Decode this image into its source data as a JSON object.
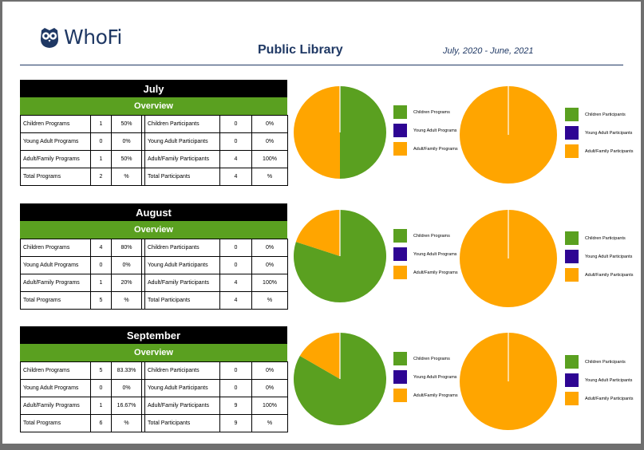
{
  "logo": {
    "brand": "WhoFi",
    "icon": "owl-icon"
  },
  "header": {
    "title": "Public Library",
    "date_range": "July, 2020 - June, 2021"
  },
  "colors": {
    "children": "#5aa020",
    "young_adult": "#2e0593",
    "adult_family": "#ffa500",
    "navy": "#1f3864"
  },
  "legend": {
    "programs": [
      "Children Programs",
      "Young Adult Programs",
      "Adult/Family Programs"
    ],
    "participants": [
      "Children Participants",
      "Young Adult Participants",
      "Adult/Family Participants"
    ]
  },
  "months": [
    {
      "name": "July",
      "overview_label": "Overview",
      "rows": [
        [
          "Children Programs",
          "1",
          "50%",
          "Children Participants",
          "0",
          "0%"
        ],
        [
          "Young Adult Programs",
          "0",
          "0%",
          "Young Adult Participants",
          "0",
          "0%"
        ],
        [
          "Adult/Family Programs",
          "1",
          "50%",
          "Adult/Family Participants",
          "4",
          "100%"
        ],
        [
          "Total Programs",
          "2",
          "%",
          "Total Participants",
          "4",
          "%"
        ]
      ]
    },
    {
      "name": "August",
      "overview_label": "Overview",
      "rows": [
        [
          "Children Programs",
          "4",
          "80%",
          "Children Participants",
          "0",
          "0%"
        ],
        [
          "Young Adult Programs",
          "0",
          "0%",
          "Young Adult Participants",
          "0",
          "0%"
        ],
        [
          "Adult/Family Programs",
          "1",
          "20%",
          "Adult/Family Participants",
          "4",
          "100%"
        ],
        [
          "Total Programs",
          "5",
          "%",
          "Total Participants",
          "4",
          "%"
        ]
      ]
    },
    {
      "name": "September",
      "overview_label": "Overview",
      "rows": [
        [
          "Children Programs",
          "5",
          "83.33%",
          "Children Participants",
          "0",
          "0%"
        ],
        [
          "Young Adult Programs",
          "0",
          "0%",
          "Young Adult Participants",
          "0",
          "0%"
        ],
        [
          "Adult/Family Programs",
          "1",
          "16.67%",
          "Adult/Family Participants",
          "9",
          "100%"
        ],
        [
          "Total Programs",
          "6",
          "%",
          "Total Participants",
          "9",
          "%"
        ]
      ]
    }
  ],
  "chart_data": [
    {
      "type": "pie",
      "categories": [
        "Children Programs",
        "Young Adult Programs",
        "Adult/Family Programs"
      ],
      "values": [
        1,
        0,
        1
      ]
    },
    {
      "type": "pie",
      "categories": [
        "Children Participants",
        "Young Adult Participants",
        "Adult/Family Participants"
      ],
      "values": [
        0,
        0,
        4
      ]
    },
    {
      "type": "pie",
      "categories": [
        "Children Programs",
        "Young Adult Programs",
        "Adult/Family Programs"
      ],
      "values": [
        4,
        0,
        1
      ]
    },
    {
      "type": "pie",
      "categories": [
        "Children Participants",
        "Young Adult Participants",
        "Adult/Family Participants"
      ],
      "values": [
        0,
        0,
        4
      ]
    },
    {
      "type": "pie",
      "categories": [
        "Children Programs",
        "Young Adult Programs",
        "Adult/Family Programs"
      ],
      "values": [
        5,
        0,
        1
      ]
    },
    {
      "type": "pie",
      "categories": [
        "Children Participants",
        "Young Adult Participants",
        "Adult/Family Participants"
      ],
      "values": [
        0,
        0,
        9
      ]
    }
  ]
}
